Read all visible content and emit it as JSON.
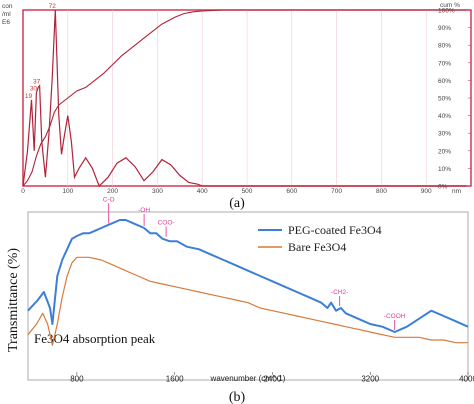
{
  "panel_a": {
    "caption": "(a)",
    "left_unit_top": "con",
    "left_unit_mid": "/ml",
    "left_unit_bot": "E6",
    "right_unit_top": "cum %",
    "x_unit": "nm"
  },
  "panel_b": {
    "caption": "(b)",
    "ylabel": "Transmittance (%)",
    "xlabel": "wavenumber (cm^-1)",
    "inner_label": "Fe3O4 absorption peak"
  },
  "colors": {
    "panel_a_line": "#b0243a",
    "panel_b_peg": "#3d7fd6",
    "panel_b_bare": "#d77a3a",
    "annotation": "#e0409a"
  },
  "chart_data": [
    {
      "type": "line",
      "x_unit": "nm",
      "xlim": [
        0,
        1000
      ],
      "y_right_lim": [
        0,
        100
      ],
      "x_ticks": [
        "0",
        "100",
        "200",
        "300",
        "400",
        "500",
        "600",
        "700",
        "800",
        "900"
      ],
      "y_right_ticks": [
        "0%",
        "10%",
        "20%",
        "30%",
        "40%",
        "50%",
        "60%",
        "70%",
        "80%",
        "90%",
        "100%"
      ],
      "peak_labels": [
        "19",
        "30",
        "37",
        "72"
      ],
      "series": [
        {
          "x": [
            0,
            10,
            19,
            25,
            30,
            34,
            37,
            42,
            50,
            58,
            65,
            72,
            80,
            86,
            92,
            100,
            108,
            115,
            125,
            140,
            155,
            170,
            190,
            210,
            230,
            250,
            270,
            290,
            310,
            330,
            350,
            370,
            390,
            400,
            420,
            450,
            480,
            500,
            600,
            700,
            800,
            900,
            990
          ],
          "y": [
            0,
            20,
            49,
            20,
            53,
            56,
            57,
            25,
            5,
            30,
            60,
            100,
            40,
            18,
            28,
            40,
            25,
            5,
            10,
            16,
            10,
            0,
            5,
            13,
            16,
            11,
            3,
            8,
            15,
            12,
            6,
            2,
            1,
            0,
            0,
            0,
            0,
            0,
            0,
            0,
            0,
            0,
            0
          ]
        },
        {
          "x": [
            0,
            10,
            20,
            30,
            40,
            50,
            60,
            70,
            80,
            100,
            120,
            140,
            160,
            180,
            200,
            220,
            250,
            280,
            310,
            340,
            360,
            380,
            400,
            450,
            500,
            600,
            700,
            800,
            900,
            990
          ],
          "y": [
            0,
            3,
            8,
            17,
            24,
            28,
            34,
            42,
            46,
            50,
            54,
            56,
            60,
            64,
            69,
            74,
            80,
            86,
            92,
            96,
            98,
            99,
            99.5,
            100,
            100,
            100,
            100,
            100,
            100,
            100
          ]
        }
      ]
    },
    {
      "type": "line",
      "xlabel": "wavenumber (cm^-1)",
      "ylabel": "Transmittance (%)",
      "xlim": [
        400,
        4000
      ],
      "x_ticks": [
        "800",
        "1600",
        "2400",
        "3200",
        "4000"
      ],
      "annotations": [
        "C-O",
        "-OH",
        "COO-",
        "-CH2-",
        "-COOH"
      ],
      "series": [
        {
          "name": "PEG-coated Fe3O4",
          "x": [
            400,
            480,
            530,
            580,
            600,
            640,
            680,
            720,
            760,
            800,
            850,
            900,
            950,
            1000,
            1050,
            1100,
            1150,
            1200,
            1250,
            1300,
            1350,
            1400,
            1450,
            1500,
            1560,
            1620,
            1700,
            1800,
            1900,
            2000,
            2100,
            2200,
            2300,
            2400,
            2500,
            2600,
            2700,
            2800,
            2850,
            2880,
            2920,
            2960,
            3000,
            3100,
            3200,
            3300,
            3400,
            3500,
            3600,
            3700,
            3800,
            3900,
            4000
          ],
          "y": [
            63,
            67,
            70,
            64,
            58,
            76,
            82,
            86,
            90,
            91,
            92,
            92,
            93,
            94,
            95,
            96,
            97,
            97,
            96,
            95,
            94,
            92,
            92,
            90,
            89,
            89,
            87,
            86,
            84,
            82,
            80,
            78,
            76,
            74,
            72,
            70,
            68,
            66,
            64,
            66,
            63,
            64,
            62,
            60,
            58,
            57,
            55,
            57,
            60,
            63,
            61,
            59,
            57
          ]
        },
        {
          "name": "Bare Fe3O4",
          "x": [
            400,
            470,
            520,
            560,
            600,
            640,
            680,
            720,
            760,
            800,
            900,
            1000,
            1100,
            1200,
            1300,
            1400,
            1500,
            1600,
            1700,
            1800,
            1900,
            2000,
            2100,
            2200,
            2300,
            2400,
            2500,
            2600,
            2700,
            2800,
            2900,
            3000,
            3100,
            3200,
            3300,
            3400,
            3500,
            3600,
            3700,
            3800,
            3900,
            4000
          ],
          "y": [
            54,
            58,
            62,
            58,
            50,
            58,
            68,
            76,
            81,
            83,
            83,
            82,
            80,
            78,
            76,
            74,
            73,
            72,
            71,
            70,
            69,
            68,
            67,
            66,
            64,
            63,
            62,
            61,
            60,
            59,
            58,
            57,
            56,
            55,
            54,
            53,
            53,
            53,
            52,
            52,
            51,
            51
          ]
        }
      ]
    }
  ]
}
